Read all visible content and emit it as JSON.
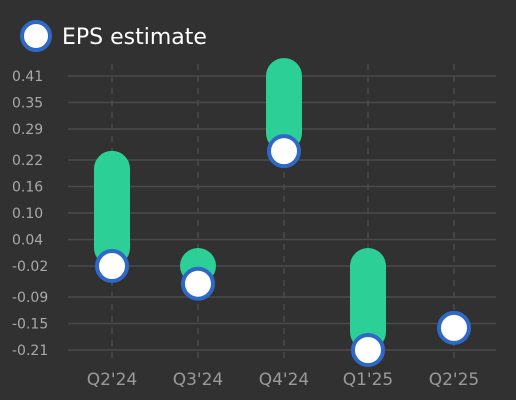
{
  "chart_data": {
    "type": "scatter",
    "legend": {
      "label": "EPS estimate",
      "position": "top-left"
    },
    "categories": [
      "Q2'24",
      "Q3'24",
      "Q4'24",
      "Q1'25",
      "Q2'25"
    ],
    "yticks": [
      "0.41",
      "0.35",
      "0.29",
      "0.22",
      "0.16",
      "0.10",
      "0.04",
      "-0.02",
      "-0.09",
      "-0.15",
      "-0.21"
    ],
    "ylim": [
      -0.21,
      0.41
    ],
    "grid": true,
    "series": [
      {
        "name": "EPS estimate",
        "values": [
          -0.02,
          -0.06,
          0.24,
          -0.21,
          -0.16
        ]
      }
    ],
    "bar_tops": [
      0.2,
      -0.02,
      0.41,
      -0.02,
      null
    ],
    "colors": {
      "background": "#313131",
      "bar": "#2ccf95",
      "marker_fill": "#ffffff",
      "marker_stroke": "#2f69c8",
      "grid": "#4a4a4a",
      "tick": "#a9a9a9"
    }
  }
}
